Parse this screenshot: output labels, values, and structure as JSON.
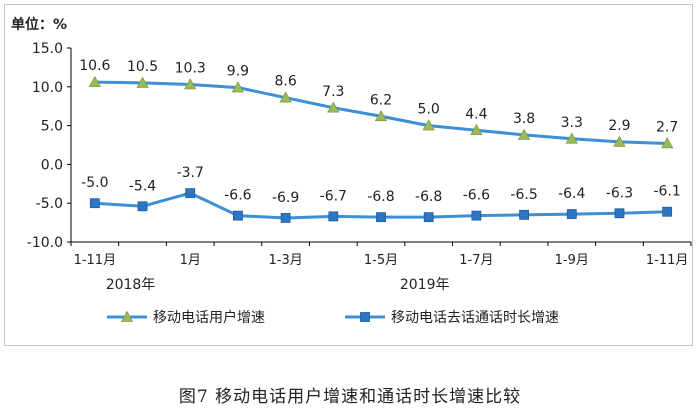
{
  "chart_data": {
    "type": "line",
    "unit_label": "单位：%",
    "categories": [
      "1-11月",
      "",
      "1月",
      "",
      "1-3月",
      "",
      "1-5月",
      "",
      "1-7月",
      "",
      "1-9月",
      "",
      "1-11月"
    ],
    "year_labels": [
      "2018年",
      "2019年"
    ],
    "yticks": [
      "15.0",
      "10.0",
      "5.0",
      "0.0",
      "-5.0",
      "-10.0"
    ],
    "ylim": [
      -10,
      15
    ],
    "grid": false,
    "legend_position": "bottom",
    "series": [
      {
        "name": "移动电话用户增速",
        "values": [
          10.6,
          10.5,
          10.3,
          9.9,
          8.6,
          7.3,
          6.2,
          5.0,
          4.4,
          3.8,
          3.3,
          2.9,
          2.7
        ],
        "labels": [
          "10.6",
          "10.5",
          "10.3",
          "9.9",
          "8.6",
          "7.3",
          "6.2",
          "5.0",
          "4.4",
          "3.8",
          "3.3",
          "2.9",
          "2.7"
        ],
        "line_color": "#3d8fd6",
        "marker_color": "#9bbb59",
        "marker": "triangle"
      },
      {
        "name": "移动电话去话通话时长增速",
        "values": [
          -5.0,
          -5.4,
          -3.7,
          -6.6,
          -6.9,
          -6.7,
          -6.8,
          -6.8,
          -6.6,
          -6.5,
          -6.4,
          -6.3,
          -6.1
        ],
        "labels": [
          "-5.0",
          "-5.4",
          "-3.7",
          "-6.6",
          "-6.9",
          "-6.7",
          "-6.8",
          "-6.8",
          "-6.6",
          "-6.5",
          "-6.4",
          "-6.3",
          "-6.1"
        ],
        "line_color": "#3d8fd6",
        "marker_color": "#2e75c4",
        "marker": "square"
      }
    ]
  },
  "caption": "图7    移动电话用户增速和通话时长增速比较"
}
